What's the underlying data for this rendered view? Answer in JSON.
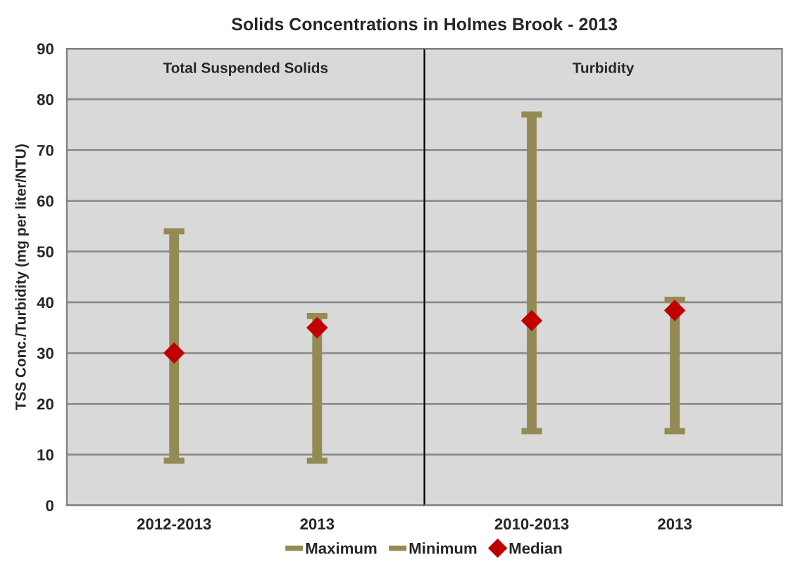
{
  "chart_data": [
    {
      "type": "scatter",
      "title": "Solids Concentrations in Holmes Brook - 2013",
      "ylabel": "TSS Conc./Turbidity (mg per liter/NTU)",
      "categories": [
        "2012-2013",
        "2013"
      ],
      "series": [
        {
          "name": "Maximum",
          "color": "#948a54",
          "values": [
            54,
            37.3
          ]
        },
        {
          "name": "Minimum",
          "color": "#948a54",
          "values": [
            8.8,
            8.8
          ]
        },
        {
          "name": "Median",
          "color": "#c00000",
          "marker": "diamond",
          "values": [
            30,
            35
          ]
        }
      ],
      "ylim": [
        0,
        90
      ],
      "yticks": [
        0,
        10,
        20,
        30,
        40,
        50,
        60,
        70,
        80,
        90
      ],
      "annotations": [
        "Total Suspended Solids"
      ],
      "grid": "y",
      "legend": "bottom"
    },
    {
      "type": "scatter",
      "categories": [
        "2010-2013",
        "2013"
      ],
      "series": [
        {
          "color": "#948a54",
          "values": [
            77,
            40.5
          ]
        },
        {
          "color": "#948a54",
          "values": [
            14.6,
            14.6
          ]
        },
        {
          "color": "#c00000",
          "marker": "diamond",
          "values": [
            36.4,
            38.4
          ]
        }
      ],
      "ylim": [
        0,
        90
      ],
      "yticks": [
        0,
        10,
        20,
        30,
        40,
        50,
        60,
        70,
        80,
        90
      ],
      "tick_labels": "x",
      "annotations": [
        "Turbidity"
      ],
      "grid": "y"
    }
  ]
}
